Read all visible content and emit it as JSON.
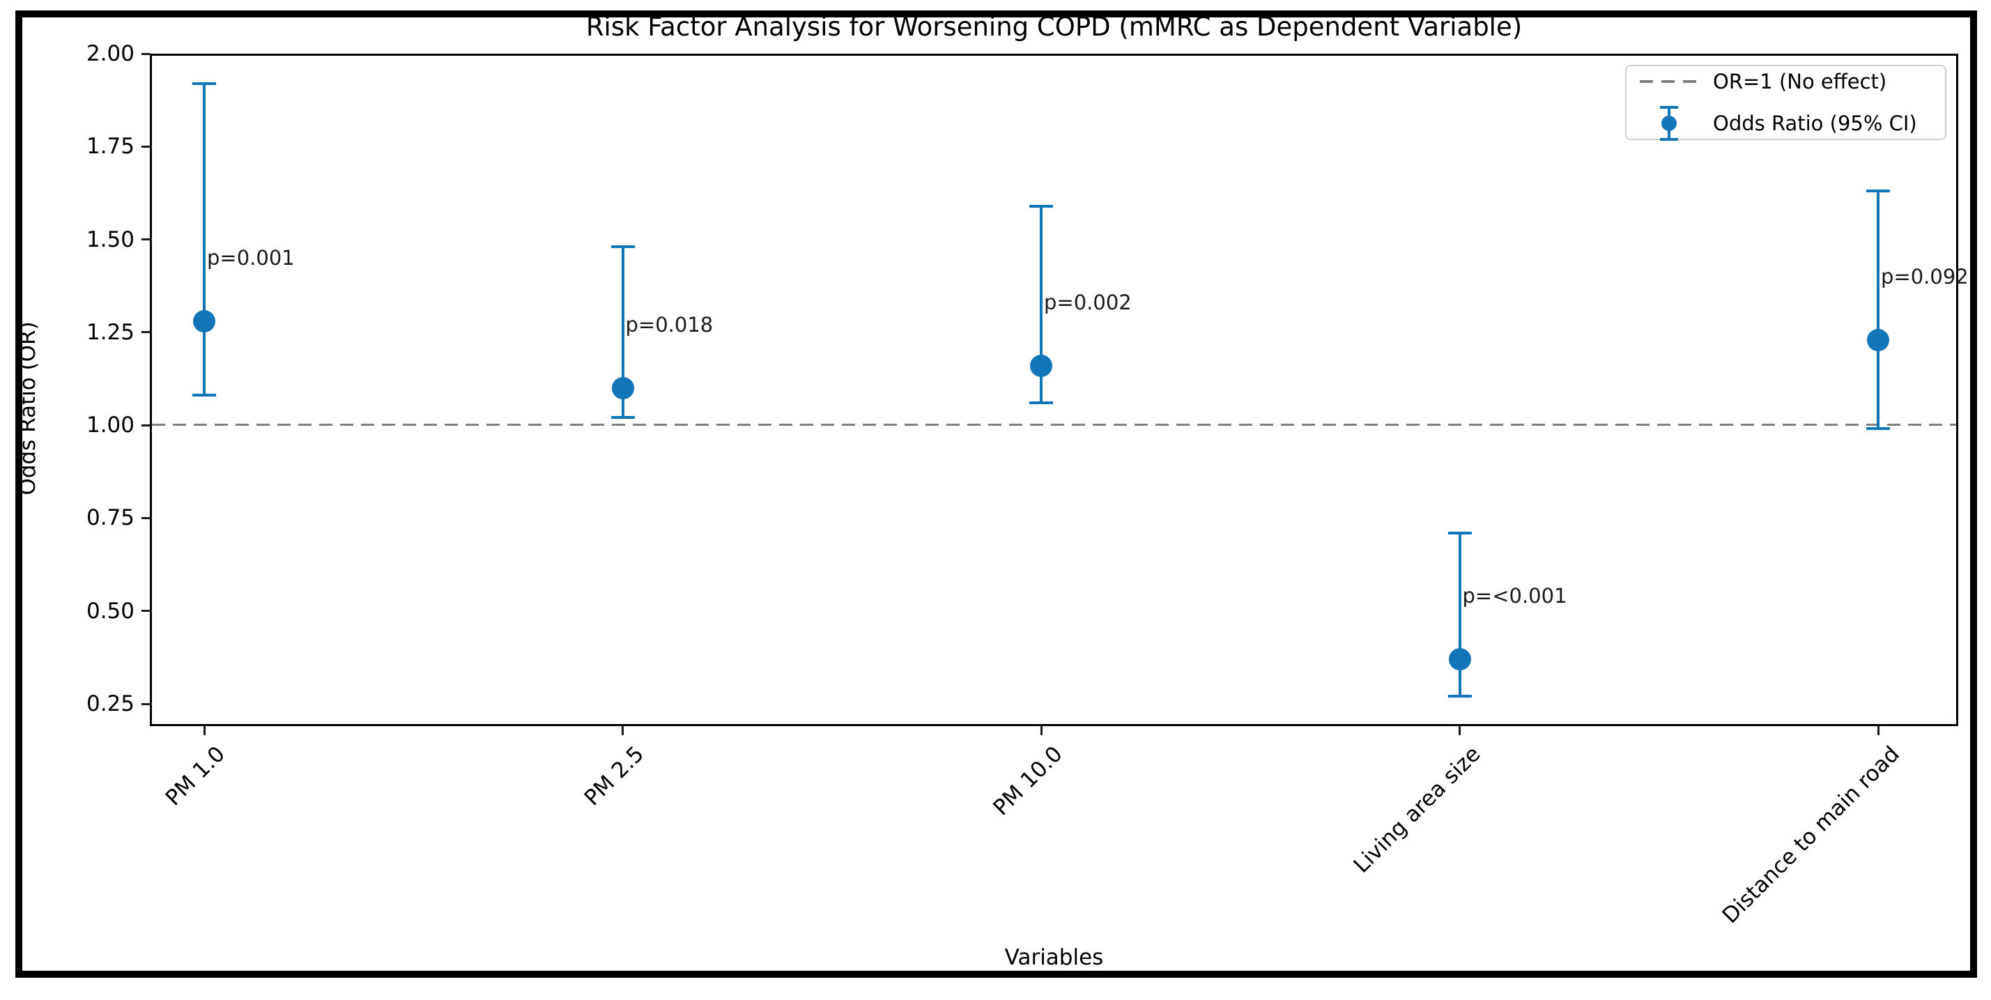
{
  "chart_data": {
    "type": "scatter",
    "variant": "forest-plot-errorbar",
    "title": "Risk Factor Analysis for Worsening COPD (mMRC as Dependent Variable)",
    "xlabel": "Variables",
    "ylabel": "Odds Ratio (OR)",
    "categories": [
      "PM 1.0",
      "PM 2.5",
      "PM 10.0",
      "Living area size",
      "Distance to main road"
    ],
    "series": [
      {
        "name": "Odds Ratio (95% CI)",
        "odds_ratio": [
          1.28,
          1.1,
          1.16,
          0.37,
          1.23
        ],
        "ci_low": [
          1.08,
          1.02,
          1.06,
          0.27,
          0.99
        ],
        "ci_high": [
          1.92,
          1.48,
          1.59,
          0.71,
          1.63
        ],
        "p_labels": [
          "p=0.001",
          "p=0.018",
          "p=0.002",
          "p=<0.001",
          "p=0.092"
        ]
      }
    ],
    "reference_line": {
      "y": 1.0,
      "label": "OR=1 (No effect)",
      "style": "dashed"
    },
    "legend": {
      "position": "upper-right",
      "entries": [
        "OR=1 (No effect)",
        "Odds Ratio (95% CI)"
      ]
    },
    "ylim": [
      0.19,
      2.0
    ],
    "yticks": [
      2.0,
      1.75,
      1.5,
      1.25,
      1.0,
      0.75,
      0.5,
      0.25
    ],
    "ytick_labels": [
      "2.00",
      "1.75",
      "1.50",
      "1.25",
      "1.00",
      "0.75",
      "0.50",
      "0.25"
    ],
    "grid": false,
    "p_label_offset_or_units": 0.17,
    "colors": {
      "marker": "#1175b8",
      "reference_line": "#7f7f7f",
      "text": "#000000",
      "annotation": "#1a1a1a",
      "background": "#ffffff",
      "figure_border": "#000000"
    }
  }
}
